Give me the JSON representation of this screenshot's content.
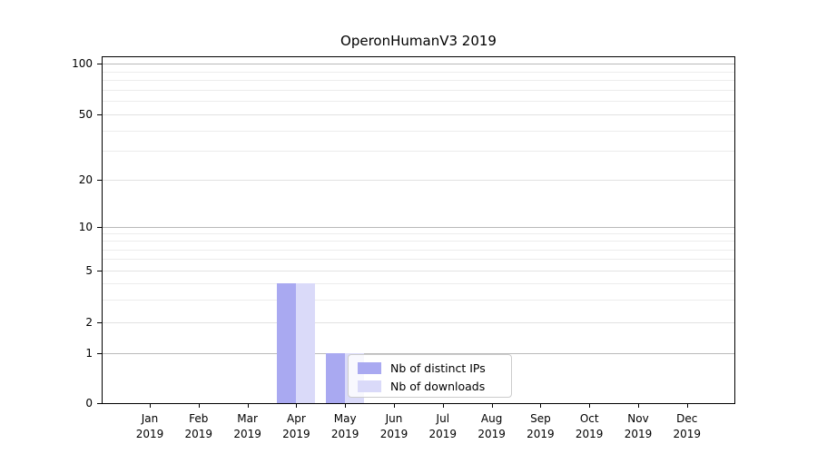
{
  "title": "OperonHumanV3 2019",
  "legend": {
    "items": [
      {
        "label": "Nb of distinct IPs",
        "color": "#a9a9f1"
      },
      {
        "label": "Nb of downloads",
        "color": "#dadaf9"
      }
    ]
  },
  "axis": {
    "months": [
      "Jan",
      "Feb",
      "Mar",
      "Apr",
      "May",
      "Jun",
      "Jul",
      "Aug",
      "Sep",
      "Oct",
      "Nov",
      "Dec"
    ],
    "year": "2019",
    "y_tick_labels": [
      "0",
      "1",
      "2",
      "5",
      "10",
      "20",
      "50",
      "100"
    ]
  },
  "colors": {
    "grid_dark": "#b9b9b9",
    "grid_light": "#e2e2e2",
    "grid_minor": "#ececec",
    "spine": "#000000",
    "background": "#ffffff"
  },
  "chart_data": {
    "type": "bar",
    "title": "OperonHumanV3 2019",
    "categories": [
      "Jan 2019",
      "Feb 2019",
      "Mar 2019",
      "Apr 2019",
      "May 2019",
      "Jun 2019",
      "Jul 2019",
      "Aug 2019",
      "Sep 2019",
      "Oct 2019",
      "Nov 2019",
      "Dec 2019"
    ],
    "series": [
      {
        "name": "Nb of distinct IPs",
        "color": "#a9a9f1",
        "values": [
          0,
          0,
          0,
          4,
          1,
          0,
          0,
          0,
          0,
          0,
          0,
          0
        ]
      },
      {
        "name": "Nb of downloads",
        "color": "#dadaf9",
        "values": [
          0,
          0,
          0,
          4,
          1,
          0,
          0,
          0,
          0,
          0,
          0,
          0
        ]
      }
    ],
    "xlabel": "",
    "ylabel": "",
    "yscale": "symlog",
    "ylim": [
      0,
      115
    ],
    "y_major_ticks": [
      0,
      1,
      2,
      5,
      10,
      20,
      50,
      100
    ],
    "y_gridlines_dark": [
      1,
      10,
      100
    ],
    "y_gridlines_light": [
      2,
      5,
      20,
      50
    ],
    "y_minor_gridlines": [
      3,
      4,
      6,
      7,
      8,
      9,
      30,
      40,
      60,
      70,
      80,
      90
    ],
    "grid": true,
    "legend_position": "lower center inside"
  }
}
